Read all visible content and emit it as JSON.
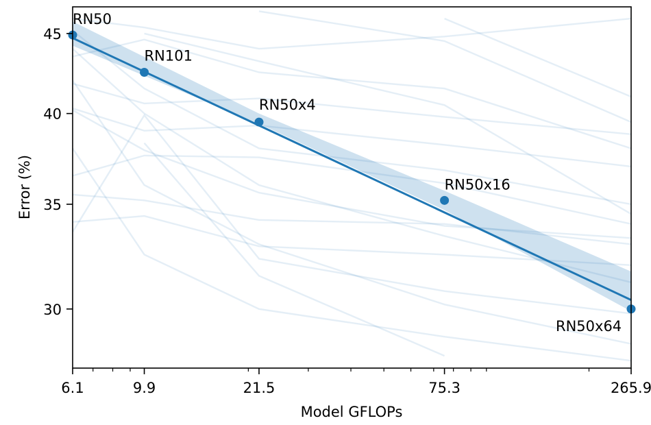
{
  "chart_data": {
    "type": "line",
    "title": "",
    "xlabel": "Model GFLOPs",
    "ylabel": "Error (%)",
    "x_scale": "log",
    "y_scale": "log",
    "xlim": [
      6.1,
      265.9
    ],
    "ylim": [
      27.5,
      46.8
    ],
    "x_ticks": [
      6.1,
      9.9,
      21.5,
      75.3,
      265.9
    ],
    "x_tick_labels": [
      "6.1",
      "9.9",
      "21.5",
      "75.3",
      "265.9"
    ],
    "y_ticks": [
      30,
      35,
      40,
      45
    ],
    "y_tick_labels": [
      "30",
      "35",
      "40",
      "45"
    ],
    "grid": false,
    "colors": {
      "series": "#1f77b4",
      "band": "#1f77b4",
      "background_lines": "#1f77b4"
    },
    "series": [
      {
        "points": [
          {
            "label": "RN50",
            "x": 6.1,
            "y": 44.9
          },
          {
            "label": "RN101",
            "x": 9.9,
            "y": 42.5
          },
          {
            "label": "RN50x4",
            "x": 21.5,
            "y": 39.5
          },
          {
            "label": "RN50x16",
            "x": 75.3,
            "y": 35.2
          },
          {
            "label": "RN50x64",
            "x": 265.9,
            "y": 30.0
          }
        ]
      }
    ],
    "trend_line": {
      "x": [
        6.1,
        265.9
      ],
      "y": [
        44.7,
        30.4
      ]
    },
    "confidence_band": {
      "x": [
        6.1,
        21.5,
        75.3,
        265.9
      ],
      "upper": [
        45.8,
        40.0,
        35.7,
        31.7
      ],
      "lower": [
        44.2,
        39.4,
        34.7,
        29.9
      ]
    },
    "background_lines": [
      [
        [
          6.1,
          43.5
        ],
        [
          9.9,
          44.6
        ],
        [
          21.5,
          42.5
        ],
        [
          75.3,
          41.5
        ],
        [
          265.9,
          38.0
        ]
      ],
      [
        [
          6.1,
          46.0
        ],
        [
          9.9,
          45.4
        ],
        [
          21.5,
          44.0
        ],
        [
          75.3,
          44.8
        ],
        [
          265.9,
          46.0
        ]
      ],
      [
        [
          6.1,
          41.8
        ],
        [
          9.9,
          40.6
        ],
        [
          21.5,
          40.9
        ],
        [
          75.3,
          39.8
        ],
        [
          265.9,
          38.8
        ]
      ],
      [
        [
          6.1,
          40.3
        ],
        [
          9.9,
          39.0
        ],
        [
          21.5,
          39.3
        ],
        [
          75.3,
          38.2
        ],
        [
          265.9,
          37.0
        ]
      ],
      [
        [
          6.1,
          40.2
        ],
        [
          9.9,
          37.9
        ],
        [
          21.5,
          35.6
        ],
        [
          75.3,
          33.9
        ],
        [
          265.9,
          33.3
        ]
      ],
      [
        [
          6.1,
          36.5
        ],
        [
          9.9,
          37.6
        ],
        [
          21.5,
          37.5
        ],
        [
          75.3,
          36.1
        ],
        [
          265.9,
          34.0
        ]
      ],
      [
        [
          6.1,
          34.1
        ],
        [
          9.9,
          34.4
        ],
        [
          21.5,
          32.9
        ],
        [
          75.3,
          32.5
        ],
        [
          265.9,
          32.0
        ]
      ],
      [
        [
          6.1,
          33.6
        ],
        [
          9.9,
          39.9
        ],
        [
          21.5,
          32.3
        ],
        [
          75.3,
          30.8
        ],
        [
          265.9,
          29.8
        ]
      ],
      [
        [
          6.1,
          38.0
        ],
        [
          9.9,
          32.5
        ],
        [
          21.5,
          30.0
        ],
        [
          75.3,
          28.8
        ],
        [
          265.9,
          27.8
        ]
      ],
      [
        [
          6.1,
          42.0
        ],
        [
          9.9,
          36.0
        ],
        [
          21.5,
          33.0
        ],
        [
          75.3,
          30.2
        ],
        [
          265.9,
          28.5
        ]
      ],
      [
        [
          9.9,
          45.0
        ],
        [
          21.5,
          43.2
        ],
        [
          75.3,
          40.5
        ],
        [
          265.9,
          34.5
        ]
      ],
      [
        [
          21.5,
          46.5
        ],
        [
          75.3,
          44.5
        ],
        [
          265.9,
          39.5
        ]
      ],
      [
        [
          6.1,
          44.0
        ],
        [
          9.9,
          40.0
        ],
        [
          21.5,
          36.0
        ],
        [
          75.3,
          33.4
        ],
        [
          265.9,
          31.2
        ]
      ],
      [
        [
          6.1,
          45.2
        ],
        [
          9.9,
          41.5
        ],
        [
          21.5,
          38.0
        ],
        [
          75.3,
          36.8
        ],
        [
          265.9,
          35.0
        ]
      ],
      [
        [
          75.3,
          46.0
        ],
        [
          265.9,
          41.0
        ]
      ],
      [
        [
          9.9,
          38.3
        ],
        [
          21.5,
          31.5
        ],
        [
          75.3,
          28.0
        ]
      ],
      [
        [
          6.1,
          35.5
        ],
        [
          9.9,
          35.2
        ],
        [
          21.5,
          34.2
        ],
        [
          75.3,
          34.0
        ],
        [
          265.9,
          33.0
        ]
      ]
    ]
  }
}
